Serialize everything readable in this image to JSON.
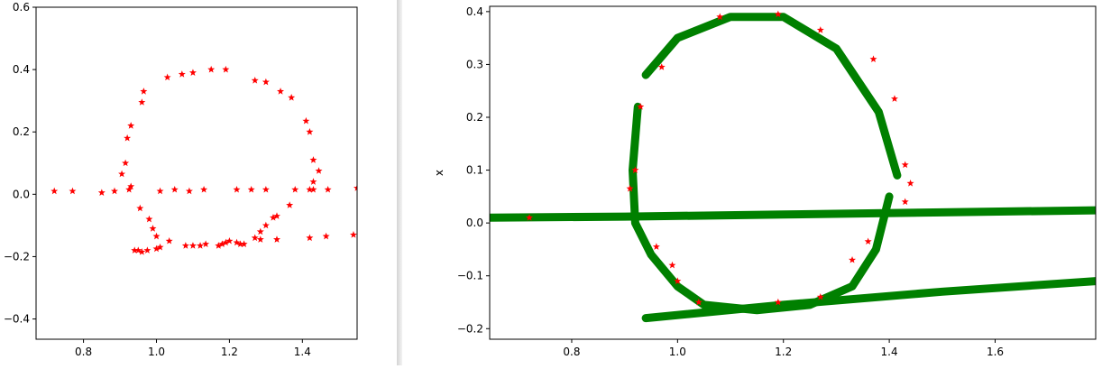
{
  "chart_data": [
    {
      "type": "scatter",
      "xlim": [
        0.67,
        1.55
      ],
      "ylim": [
        -0.465,
        0.6
      ],
      "xticks": [
        "0.8",
        "1.0",
        "1.2",
        "1.4"
      ],
      "xtick_values": [
        0.8,
        1.0,
        1.2,
        1.4
      ],
      "yticks": [
        "−0.4",
        "−0.2",
        "0.0",
        "0.2",
        "0.4",
        "0.6"
      ],
      "ytick_values": [
        -0.4,
        -0.2,
        0.0,
        0.2,
        0.4,
        0.6
      ],
      "grid": false,
      "series": [
        {
          "marker": "star",
          "color": "#ff0000",
          "points": [
            [
              0.72,
              0.01
            ],
            [
              0.77,
              0.01
            ],
            [
              0.85,
              0.005
            ],
            [
              0.885,
              0.01
            ],
            [
              0.905,
              0.065
            ],
            [
              0.915,
              0.1
            ],
            [
              0.92,
              0.18
            ],
            [
              0.93,
              0.22
            ],
            [
              0.925,
              0.015
            ],
            [
              0.93,
              0.025
            ],
            [
              0.96,
              0.295
            ],
            [
              0.965,
              0.33
            ],
            [
              1.03,
              0.375
            ],
            [
              1.07,
              0.385
            ],
            [
              1.1,
              0.39
            ],
            [
              1.15,
              0.4
            ],
            [
              1.19,
              0.4
            ],
            [
              1.27,
              0.365
            ],
            [
              1.3,
              0.36
            ],
            [
              1.34,
              0.33
            ],
            [
              1.37,
              0.31
            ],
            [
              1.41,
              0.235
            ],
            [
              1.42,
              0.2
            ],
            [
              1.43,
              0.11
            ],
            [
              1.445,
              0.075
            ],
            [
              1.43,
              0.04
            ],
            [
              1.43,
              0.015
            ],
            [
              1.42,
              0.015
            ],
            [
              1.47,
              0.015
            ],
            [
              1.55,
              0.02
            ],
            [
              1.01,
              0.01
            ],
            [
              1.05,
              0.015
            ],
            [
              1.09,
              0.01
            ],
            [
              1.13,
              0.015
            ],
            [
              1.22,
              0.015
            ],
            [
              1.26,
              0.015
            ],
            [
              1.3,
              0.015
            ],
            [
              1.38,
              0.015
            ],
            [
              0.955,
              -0.045
            ],
            [
              0.98,
              -0.08
            ],
            [
              0.99,
              -0.11
            ],
            [
              1.0,
              -0.135
            ],
            [
              0.95,
              -0.18
            ],
            [
              0.96,
              -0.185
            ],
            [
              0.975,
              -0.18
            ],
            [
              0.94,
              -0.18
            ],
            [
              1.0,
              -0.175
            ],
            [
              1.01,
              -0.17
            ],
            [
              1.035,
              -0.15
            ],
            [
              1.08,
              -0.165
            ],
            [
              1.1,
              -0.165
            ],
            [
              1.12,
              -0.165
            ],
            [
              1.135,
              -0.16
            ],
            [
              1.17,
              -0.165
            ],
            [
              1.18,
              -0.16
            ],
            [
              1.19,
              -0.155
            ],
            [
              1.2,
              -0.15
            ],
            [
              1.22,
              -0.155
            ],
            [
              1.23,
              -0.16
            ],
            [
              1.24,
              -0.16
            ],
            [
              1.27,
              -0.14
            ],
            [
              1.285,
              -0.12
            ],
            [
              1.3,
              -0.1
            ],
            [
              1.32,
              -0.075
            ],
            [
              1.33,
              -0.07
            ],
            [
              1.365,
              -0.035
            ],
            [
              1.285,
              -0.145
            ],
            [
              1.33,
              -0.145
            ],
            [
              1.42,
              -0.14
            ],
            [
              1.465,
              -0.135
            ],
            [
              1.54,
              -0.13
            ]
          ]
        }
      ]
    },
    {
      "type": "scatter",
      "xlim": [
        0.645,
        1.79
      ],
      "ylim": [
        -0.22,
        0.41
      ],
      "ylabel": "x",
      "xticks": [
        "0.8",
        "1.0",
        "1.2",
        "1.4",
        "1.6"
      ],
      "xtick_values": [
        0.8,
        1.0,
        1.2,
        1.4,
        1.6
      ],
      "yticks": [
        "−0.2",
        "−0.1",
        "0.0",
        "0.1",
        "0.2",
        "0.3",
        "0.4"
      ],
      "ytick_values": [
        -0.2,
        -0.1,
        0.0,
        0.1,
        0.2,
        0.3,
        0.4
      ],
      "grid": false,
      "series": [
        {
          "kind": "stroke",
          "color": "#008000",
          "paths": [
            [
              [
                0.645,
                0.01
              ],
              [
                0.9,
                0.012
              ],
              [
                1.2,
                0.016
              ],
              [
                1.5,
                0.02
              ],
              [
                1.79,
                0.024
              ]
            ],
            [
              [
                0.94,
                -0.18
              ],
              [
                1.2,
                -0.155
              ],
              [
                1.5,
                -0.13
              ],
              [
                1.79,
                -0.11
              ]
            ],
            [
              [
                1.415,
                0.09
              ],
              [
                1.38,
                0.21
              ],
              [
                1.3,
                0.33
              ],
              [
                1.2,
                0.39
              ],
              [
                1.1,
                0.39
              ],
              [
                1.0,
                0.35
              ],
              [
                0.94,
                0.28
              ]
            ],
            [
              [
                0.925,
                0.22
              ],
              [
                0.915,
                0.1
              ],
              [
                0.92,
                0.0
              ],
              [
                0.95,
                -0.06
              ],
              [
                1.0,
                -0.12
              ],
              [
                1.05,
                -0.155
              ],
              [
                1.15,
                -0.165
              ],
              [
                1.25,
                -0.155
              ],
              [
                1.33,
                -0.12
              ],
              [
                1.375,
                -0.05
              ],
              [
                1.4,
                0.05
              ]
            ]
          ]
        },
        {
          "marker": "star",
          "color": "#ff0000",
          "points": [
            [
              0.72,
              0.01
            ],
            [
              0.91,
              0.065
            ],
            [
              0.92,
              0.1
            ],
            [
              0.93,
              0.22
            ],
            [
              0.97,
              0.295
            ],
            [
              1.08,
              0.39
            ],
            [
              1.19,
              0.395
            ],
            [
              1.27,
              0.365
            ],
            [
              1.37,
              0.31
            ],
            [
              1.41,
              0.235
            ],
            [
              1.43,
              0.11
            ],
            [
              1.44,
              0.075
            ],
            [
              1.43,
              0.04
            ],
            [
              0.96,
              -0.045
            ],
            [
              0.99,
              -0.08
            ],
            [
              1.0,
              -0.11
            ],
            [
              1.04,
              -0.15
            ],
            [
              1.19,
              -0.15
            ],
            [
              1.27,
              -0.14
            ],
            [
              1.33,
              -0.07
            ],
            [
              1.36,
              -0.035
            ]
          ]
        }
      ]
    }
  ]
}
